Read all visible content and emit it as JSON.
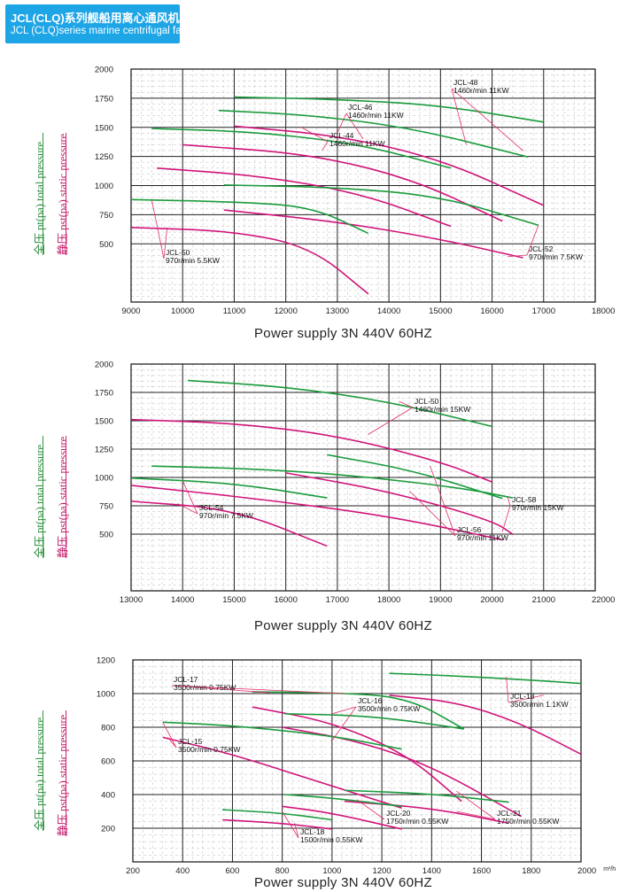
{
  "header": {
    "title_cn": "JCL(CLQ)系列舰船用离心通风机",
    "title_en": "JCL (CLQ)series marine centrifugal fan"
  },
  "colors": {
    "total_pressure": "#1a9b3c",
    "static_pressure": "#d0147a",
    "header_bg": "#1ea5e6"
  },
  "axis_labels": {
    "total": "全压 pt(pa)  total pressure",
    "static": "静压 pst(pa)  static pressure"
  },
  "chart_data": [
    {
      "type": "line",
      "xlabel": "Power supply   3N  440V  60HZ",
      "x_unit": "m³/h",
      "xlim": [
        9000,
        18000
      ],
      "ylim": [
        0,
        2000
      ],
      "xticks": [
        9000,
        10000,
        11000,
        12000,
        13000,
        14000,
        15000,
        16000,
        17000,
        18000
      ],
      "xtick_labels": [
        "9000",
        "10000",
        "11000",
        "12000",
        "13000",
        "14000",
        "15000",
        "16000",
        "17000",
        "18000"
      ],
      "yticks": [
        500,
        750,
        1000,
        1250,
        1500,
        1750,
        2000
      ],
      "grid": true,
      "series": [
        {
          "label": "JCL-48",
          "detail": "1460r/min  11KW",
          "kind": "total",
          "x": [
            11000,
            13000,
            15000,
            17000
          ],
          "y": [
            1760,
            1740,
            1690,
            1545
          ]
        },
        {
          "label": "JCL-48",
          "kind": "static",
          "x": [
            11000,
            13000,
            15000,
            17000
          ],
          "y": [
            1510,
            1430,
            1230,
            830
          ]
        },
        {
          "label": "JCL-46",
          "detail": "1460r/min  11KW",
          "kind": "total",
          "x": [
            10700,
            12500,
            14500,
            16700
          ],
          "y": [
            1645,
            1605,
            1490,
            1245
          ]
        },
        {
          "label": "JCL-46",
          "kind": "static",
          "x": [
            10000,
            12500,
            14500,
            16200
          ],
          "y": [
            1350,
            1270,
            1050,
            695
          ]
        },
        {
          "label": "JCL-44",
          "detail": "1460r/min  11KW",
          "kind": "total",
          "x": [
            9400,
            11500,
            13500,
            15200
          ],
          "y": [
            1490,
            1460,
            1350,
            1150
          ]
        },
        {
          "label": "JCL-44",
          "kind": "static",
          "x": [
            9500,
            11500,
            13500,
            15200
          ],
          "y": [
            1150,
            1085,
            930,
            650
          ]
        },
        {
          "label": "JCL-52",
          "detail": "970r/min  7.5KW",
          "kind": "total",
          "x": [
            10800,
            13000,
            15000,
            16900
          ],
          "y": [
            1005,
            985,
            910,
            660
          ]
        },
        {
          "label": "JCL-52",
          "kind": "static",
          "x": [
            10800,
            13000,
            15000,
            16600
          ],
          "y": [
            790,
            690,
            540,
            380
          ]
        },
        {
          "label": "JCL-50",
          "detail": "970r/min  5.5KW",
          "kind": "total",
          "x": [
            9000,
            11000,
            12500,
            13600
          ],
          "y": [
            880,
            860,
            820,
            590
          ]
        },
        {
          "label": "JCL-50",
          "kind": "static",
          "x": [
            9000,
            11000,
            12500,
            13600
          ],
          "y": [
            640,
            610,
            470,
            70
          ]
        }
      ]
    },
    {
      "type": "line",
      "xlabel": "Power supply   3N  440V  60HZ",
      "x_unit": "m³/h",
      "xlim": [
        13000,
        22000
      ],
      "ylim": [
        0,
        2000
      ],
      "xticks": [
        13000,
        14000,
        15000,
        16000,
        17000,
        18000,
        19000,
        20000,
        21000,
        22000
      ],
      "xtick_labels": [
        "13000",
        "14000",
        "15000",
        "16000",
        "17000",
        "18000",
        "19000",
        "20000",
        "21000",
        "22000"
      ],
      "yticks": [
        500,
        750,
        1000,
        1250,
        1500,
        1750,
        2000
      ],
      "grid": true,
      "series": [
        {
          "label": "JCL-50",
          "detail": "1460r/min  15KW",
          "kind": "total",
          "x": [
            14100,
            16000,
            18000,
            20000
          ],
          "y": [
            1855,
            1800,
            1670,
            1450
          ]
        },
        {
          "label": "JCL-50",
          "kind": "static",
          "x": [
            13000,
            15000,
            17000,
            19000,
            20000
          ],
          "y": [
            1510,
            1480,
            1370,
            1140,
            960
          ]
        },
        {
          "label": "JCL-58",
          "detail": "970r/min  15KW",
          "kind": "total",
          "x": [
            13400,
            15500,
            17500,
            19500,
            20400
          ],
          "y": [
            1100,
            1075,
            1010,
            900,
            820
          ]
        },
        {
          "label": "JCL-58",
          "kind": "static",
          "x": [
            16000,
            18000,
            20000,
            20400
          ],
          "y": [
            1040,
            880,
            620,
            500
          ]
        },
        {
          "label": "JCL-56",
          "detail": "970r/min  11KW",
          "kind": "total",
          "x": [
            16800,
            18500,
            20200
          ],
          "y": [
            1200,
            1060,
            815
          ]
        },
        {
          "label": "JCL-56",
          "kind": "static",
          "x": [
            13000,
            15500,
            18000,
            20200
          ],
          "y": [
            930,
            810,
            660,
            450
          ]
        },
        {
          "label": "JCL-54",
          "detail": "970r/min  7.5KW",
          "kind": "total",
          "x": [
            13000,
            15000,
            16800
          ],
          "y": [
            995,
            950,
            820
          ]
        },
        {
          "label": "JCL-54",
          "kind": "static",
          "x": [
            13000,
            15000,
            16800
          ],
          "y": [
            790,
            720,
            395
          ]
        }
      ]
    },
    {
      "type": "line",
      "xlabel": "Power supply   3N  440V  60HZ",
      "x_unit": "m³/h",
      "xlim": [
        200,
        2000
      ],
      "ylim": [
        0,
        1200
      ],
      "xticks": [
        200,
        400,
        600,
        800,
        1000,
        1200,
        1400,
        1600,
        1800,
        2000
      ],
      "xtick_labels": [
        "200",
        "400",
        "600",
        "800",
        "1000",
        "1200",
        "1400",
        "1600",
        "1800",
        "2000"
      ],
      "yticks": [
        200,
        400,
        600,
        800,
        1000,
        1200
      ],
      "grid": true,
      "series": [
        {
          "label": "JCL-18",
          "detail": "3500r/min  1.1KW",
          "kind": "total",
          "x": [
            1230,
            1500,
            1800,
            2000
          ],
          "y": [
            1120,
            1105,
            1080,
            1060
          ]
        },
        {
          "label": "JCL-18",
          "kind": "static",
          "x": [
            1230,
            1500,
            1750,
            2000
          ],
          "y": [
            990,
            950,
            830,
            640
          ]
        },
        {
          "label": "JCL-17",
          "detail": "3500r/min  0.75KW",
          "kind": "total",
          "x": [
            680,
            1000,
            1300,
            1530
          ],
          "y": [
            1010,
            1005,
            980,
            790
          ]
        },
        {
          "label": "JCL-17",
          "kind": "static",
          "x": [
            680,
            1000,
            1300,
            1520
          ],
          "y": [
            920,
            830,
            640,
            360
          ]
        },
        {
          "label": "JCL-16",
          "detail": "3500r/min  0.75KW",
          "kind": "total",
          "x": [
            810,
            1100,
            1300,
            1530
          ],
          "y": [
            880,
            870,
            840,
            790
          ]
        },
        {
          "label": "JCL-16",
          "kind": "static",
          "x": [
            800,
            1100,
            1400,
            1760
          ],
          "y": [
            800,
            720,
            570,
            270
          ]
        },
        {
          "label": "JCL-15",
          "detail": "3500r/min  0.75KW",
          "kind": "total",
          "x": [
            320,
            600,
            1000,
            1280
          ],
          "y": [
            830,
            810,
            750,
            670
          ]
        },
        {
          "label": "JCL-15",
          "kind": "static",
          "x": [
            320,
            600,
            1000,
            1280
          ],
          "y": [
            740,
            640,
            450,
            320
          ]
        },
        {
          "label": "JCL-21",
          "detail": "1750r/min  0.55KW",
          "kind": "total",
          "x": [
            1050,
            1400,
            1710
          ],
          "y": [
            425,
            405,
            355
          ]
        },
        {
          "label": "JCL-21",
          "kind": "static",
          "x": [
            1050,
            1400,
            1710
          ],
          "y": [
            360,
            320,
            230
          ]
        },
        {
          "label": "JCL-20",
          "detail": "1750r/min  0.55KW",
          "kind": "total",
          "x": [
            810,
            1000,
            1280
          ],
          "y": [
            400,
            380,
            330
          ]
        },
        {
          "label": "JCL-20",
          "kind": "static",
          "x": [
            800,
            1000,
            1280
          ],
          "y": [
            330,
            290,
            195
          ]
        },
        {
          "label": "JCL-18",
          "detail": "1500r/min  0.55KW",
          "kind": "total",
          "x": [
            560,
            800,
            1000
          ],
          "y": [
            310,
            290,
            250
          ]
        },
        {
          "label": "JCL-18",
          "kind": "static",
          "x": [
            560,
            800,
            1000
          ],
          "y": [
            250,
            230,
            195
          ]
        }
      ]
    }
  ]
}
